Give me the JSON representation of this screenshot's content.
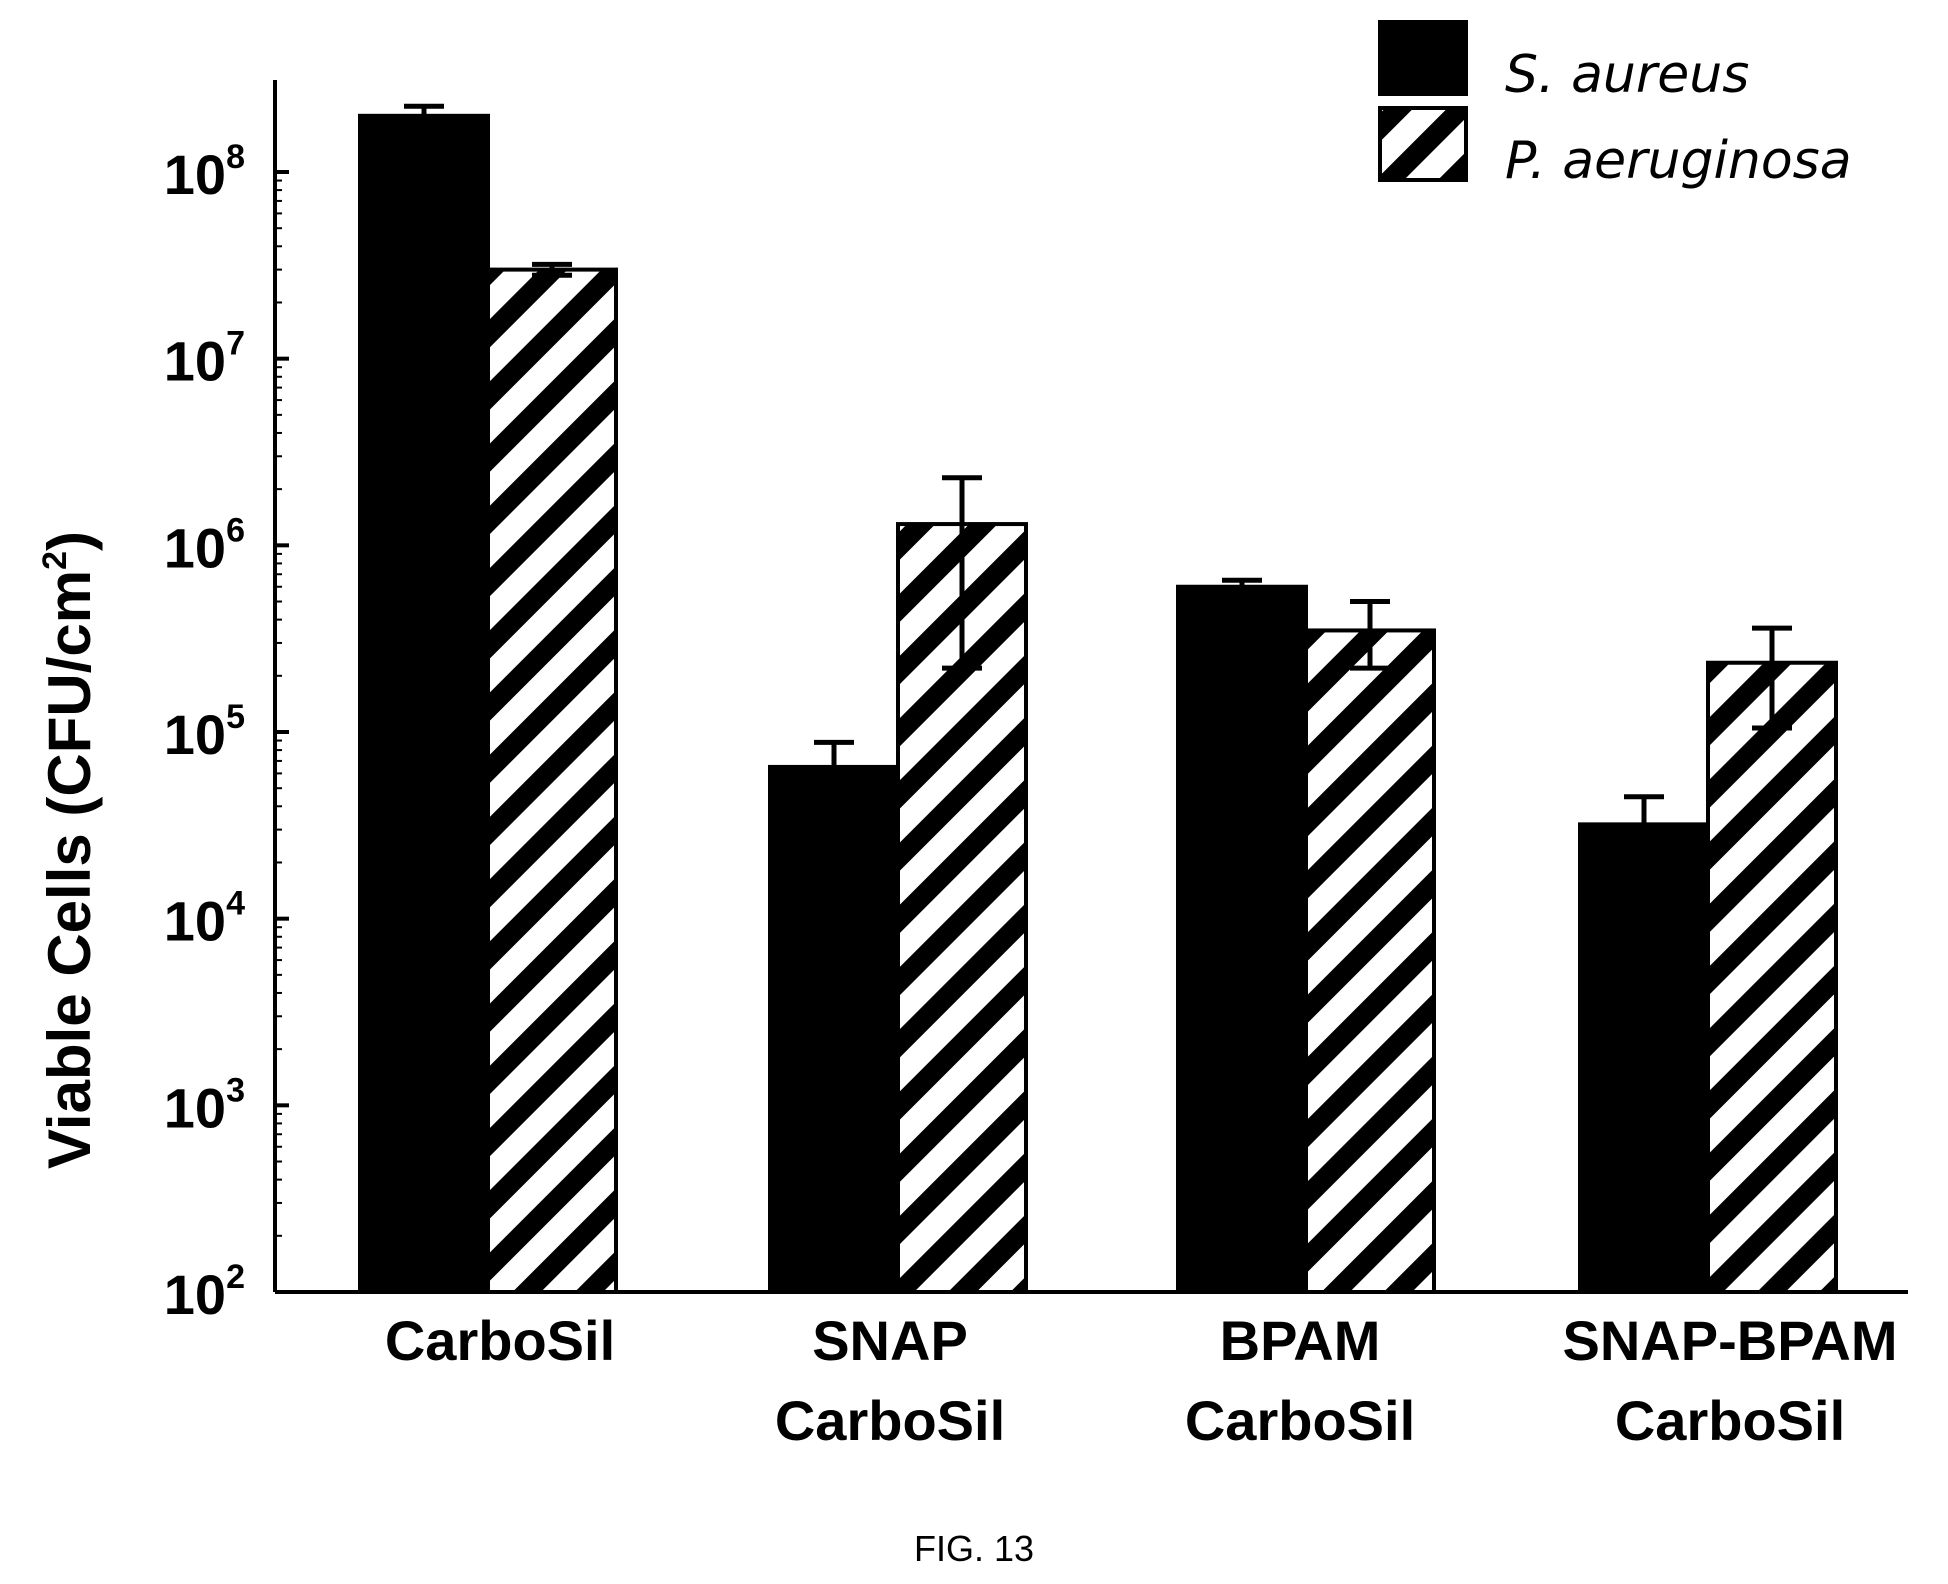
{
  "chart_data": {
    "type": "bar",
    "scale": "log",
    "ylabel": "Viable Cells (CFU/cm",
    "ylabel_sup": "2",
    "ylabel_close": ")",
    "ylim": [
      100,
      400000000
    ],
    "yticks": [
      {
        "base": "10",
        "exp": "2",
        "value": 100
      },
      {
        "base": "10",
        "exp": "3",
        "value": 1000
      },
      {
        "base": "10",
        "exp": "4",
        "value": 10000
      },
      {
        "base": "10",
        "exp": "5",
        "value": 100000
      },
      {
        "base": "10",
        "exp": "6",
        "value": 1000000
      },
      {
        "base": "10",
        "exp": "7",
        "value": 10000000
      },
      {
        "base": "10",
        "exp": "8",
        "value": 100000000
      }
    ],
    "categories": [
      {
        "line1": "CarboSil",
        "line2": ""
      },
      {
        "line1": "SNAP",
        "line2": "CarboSil"
      },
      {
        "line1": "BPAM",
        "line2": "CarboSil"
      },
      {
        "line1": "SNAP-BPAM",
        "line2": "CarboSil"
      }
    ],
    "series": [
      {
        "name": "S. aureus",
        "fill": "solid",
        "color": "#000000",
        "values": [
          200000000,
          65000.0,
          600000,
          32000
        ],
        "err_high": [
          225000000,
          88000,
          650000,
          45000
        ],
        "err_low": [
          200000000,
          65000,
          600000,
          32000
        ]
      },
      {
        "name": "P. aeruginosa",
        "fill": "hatched",
        "color": "#000000",
        "values": [
          30000000,
          1300000,
          350000,
          235000
        ],
        "err_high": [
          32000000,
          2300000,
          500000,
          360000
        ],
        "err_low": [
          28000000,
          220000,
          220000,
          105000
        ]
      }
    ],
    "legend_position": "top-right",
    "grid": false
  },
  "caption": "FIG. 13"
}
